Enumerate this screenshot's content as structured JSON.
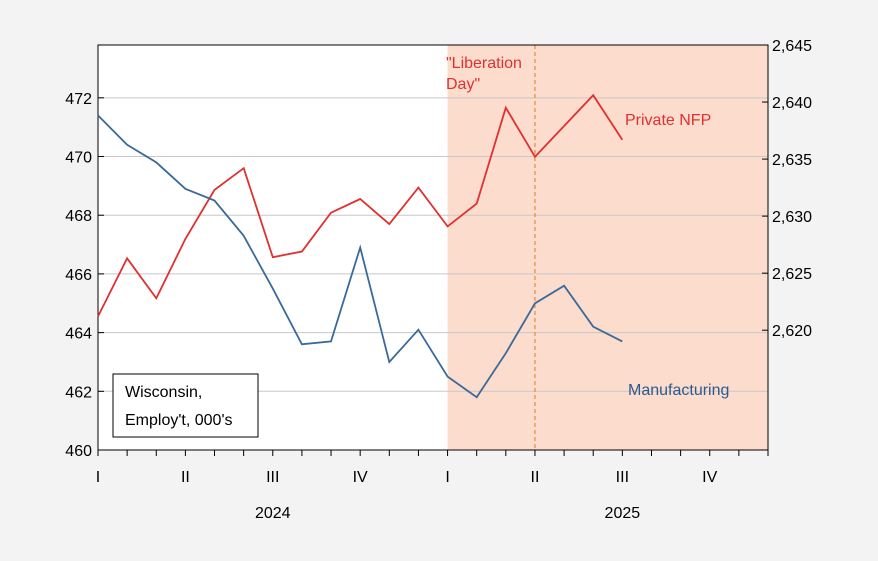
{
  "chart_data": {
    "type": "line",
    "x_periods": [
      "2024-01",
      "2024-02",
      "2024-03",
      "2024-04",
      "2024-05",
      "2024-06",
      "2024-07",
      "2024-08",
      "2024-09",
      "2024-10",
      "2024-11",
      "2024-12",
      "2025-01",
      "2025-02",
      "2025-03",
      "2025-04",
      "2025-05",
      "2025-06",
      "2025-07"
    ],
    "x_range": [
      "2024-01",
      "2025-12"
    ],
    "quarter_labels": [
      {
        "label": "I",
        "month": "2024-01"
      },
      {
        "label": "II",
        "month": "2024-04"
      },
      {
        "label": "III",
        "month": "2024-07"
      },
      {
        "label": "IV",
        "month": "2024-10"
      },
      {
        "label": "I",
        "month": "2025-01"
      },
      {
        "label": "II",
        "month": "2025-04"
      },
      {
        "label": "III",
        "month": "2025-07"
      },
      {
        "label": "IV",
        "month": "2025-10"
      }
    ],
    "year_labels": [
      {
        "label": "2024",
        "center_month": "2024-07"
      },
      {
        "label": "2025",
        "center_month": "2025-07"
      }
    ],
    "left_axis": {
      "ylim": [
        460,
        473.8
      ],
      "ticks": [
        460,
        462,
        464,
        466,
        468,
        470,
        472
      ],
      "tick_labels": [
        "460",
        "462",
        "464",
        "466",
        "468",
        "470",
        "472"
      ]
    },
    "right_axis": {
      "ylim": [
        2609.5,
        2645
      ],
      "ticks": [
        2620,
        2625,
        2630,
        2635,
        2640,
        2645
      ],
      "tick_labels": [
        "2,620",
        "2,625",
        "2,630",
        "2,635",
        "2,640",
        "2,645"
      ]
    },
    "grid": "horizontal, left axis",
    "series": [
      {
        "name": "Private NFP",
        "axis": "right",
        "color": "#e03030",
        "values": [
          2621.2,
          2626.3,
          2622.8,
          2628.0,
          2632.3,
          2634.2,
          2626.4,
          2626.9,
          2630.3,
          2631.5,
          2629.3,
          2632.5,
          2629.1,
          2631.1,
          2639.5,
          2635.2,
          2637.9,
          2640.6,
          2636.7
        ]
      },
      {
        "name": "Manufacturing",
        "axis": "left",
        "color": "#3a6a9a",
        "values": [
          471.4,
          470.4,
          469.8,
          468.9,
          468.5,
          467.3,
          465.5,
          463.6,
          463.7,
          466.9,
          463.0,
          464.1,
          462.5,
          461.8,
          463.3,
          465.0,
          465.6,
          464.2,
          463.7
        ]
      }
    ],
    "shaded_region": {
      "start": "2025-01",
      "end": "2025-12",
      "color": "#fcdccc"
    },
    "vertical_marker": {
      "month": "2025-04",
      "color": "#e07a20"
    },
    "annotations": {
      "liberation_line1": "\"Liberation",
      "liberation_line2": "Day\"",
      "private_label": "Private NFP",
      "manufacturing_label": "Manufacturing",
      "legend_line1": "Wisconsin,",
      "legend_line2": "Employ't, 000's"
    },
    "annotation_colors": {
      "liberation": "#e03030",
      "private": "#e03030",
      "manufacturing": "#2a5a90"
    }
  }
}
